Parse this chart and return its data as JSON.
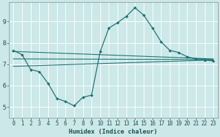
{
  "title": "",
  "xlabel": "Humidex (Indice chaleur)",
  "ylabel": "",
  "bg_color": "#cce8e8",
  "line_color": "#1a7070",
  "grid_color": "#ffffff",
  "xlim": [
    -0.5,
    23.5
  ],
  "ylim": [
    4.5,
    9.9
  ],
  "xticks": [
    0,
    1,
    2,
    3,
    4,
    5,
    6,
    7,
    8,
    9,
    10,
    11,
    12,
    13,
    14,
    15,
    16,
    17,
    18,
    19,
    20,
    21,
    22,
    23
  ],
  "yticks": [
    5,
    6,
    7,
    8,
    9
  ],
  "main_x": [
    0,
    1,
    2,
    3,
    4,
    5,
    6,
    7,
    8,
    9,
    10,
    11,
    12,
    13,
    14,
    15,
    16,
    17,
    18,
    19,
    20,
    21,
    22,
    23
  ],
  "main_y": [
    7.65,
    7.45,
    6.75,
    6.65,
    6.1,
    5.4,
    5.25,
    5.05,
    5.45,
    5.55,
    7.6,
    8.7,
    8.95,
    9.25,
    9.65,
    9.3,
    8.7,
    8.05,
    7.65,
    7.55,
    7.35,
    7.25,
    7.2,
    7.15
  ],
  "upper_line_x": [
    0,
    23
  ],
  "upper_line_y": [
    7.6,
    7.25
  ],
  "lower_line_x": [
    0,
    23
  ],
  "lower_line_y": [
    6.9,
    7.2
  ],
  "mid_line_x": [
    0,
    23
  ],
  "mid_line_y": [
    7.25,
    7.22
  ]
}
